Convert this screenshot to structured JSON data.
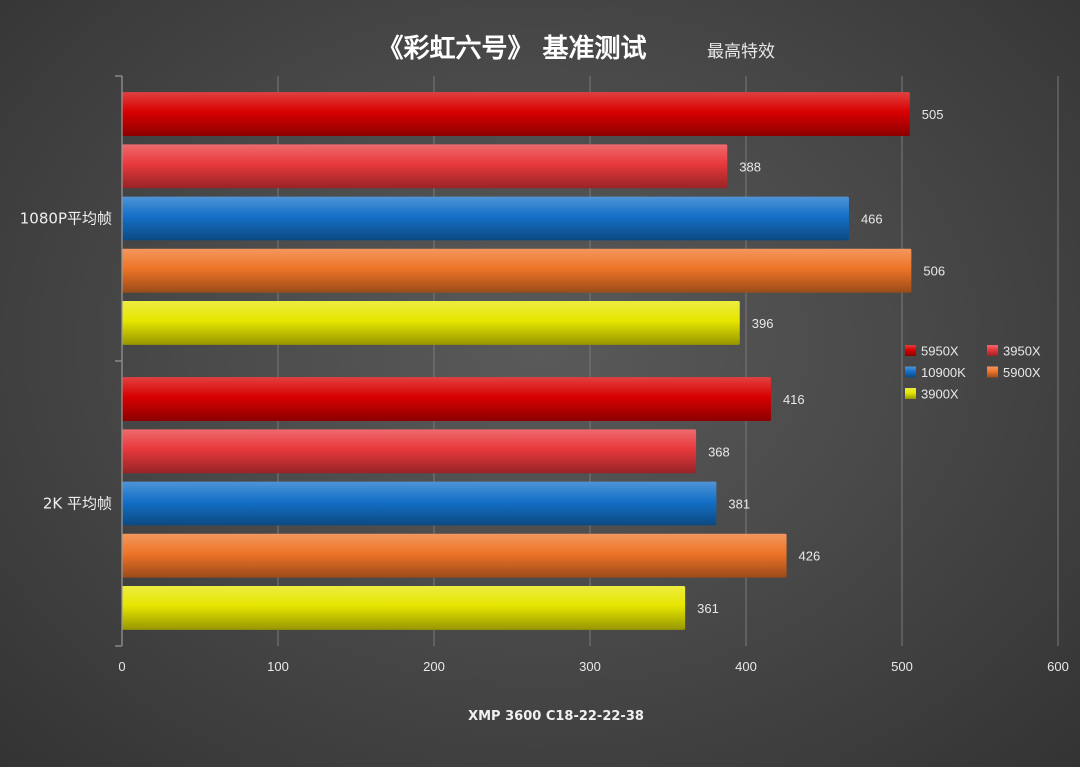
{
  "chart_data": {
    "type": "bar",
    "orientation": "horizontal",
    "title": "《彩虹六号》 基准测试",
    "subtitle": "最高特效",
    "xlabel": "XMP 3600 C18-22-22-38",
    "ylabel": "",
    "xlim": [
      0,
      600
    ],
    "ticks": [
      0,
      100,
      200,
      300,
      400,
      500,
      600
    ],
    "grid": true,
    "legend_position": "right",
    "categories": [
      "1080P平均帧",
      "2K 平均帧"
    ],
    "series": [
      {
        "name": "5950X",
        "color": "#d80000",
        "values": [
          505,
          416
        ]
      },
      {
        "name": "3950X",
        "color": "#e8383c",
        "values": [
          388,
          368
        ]
      },
      {
        "name": "10900K",
        "color": "#1470c8",
        "values": [
          466,
          381
        ]
      },
      {
        "name": "5900X",
        "color": "#ee7428",
        "values": [
          506,
          426
        ]
      },
      {
        "name": "3900X",
        "color": "#e6e600",
        "values": [
          396,
          361
        ]
      }
    ]
  }
}
